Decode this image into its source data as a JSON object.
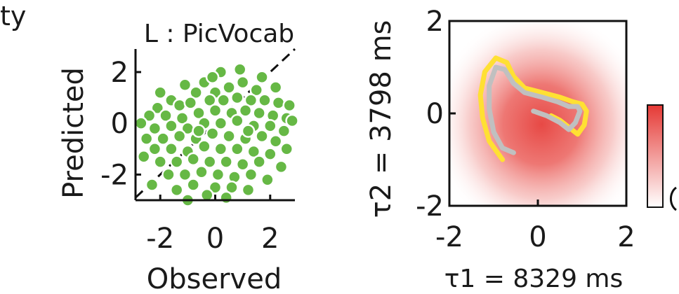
{
  "chart_data": [
    {
      "type": "scatter",
      "corner_text": "ty",
      "title": "L : PicVocab",
      "xlabel": "Observed",
      "ylabel": "Predicted",
      "xlim": [
        -2.9,
        2.9
      ],
      "ylim": [
        -3.0,
        2.9
      ],
      "xticks": [
        -2,
        0,
        2
      ],
      "yticks": [
        -2,
        0,
        2
      ],
      "tick_labels_x": [
        "-2",
        "0",
        "2"
      ],
      "tick_labels_y": [
        "-2",
        "0",
        "2"
      ],
      "marker_color": "#66b845",
      "marker_edge": "#ffffff",
      "reference_line": "identity (dashed)",
      "points": [
        [
          0.2,
          2.0
        ],
        [
          -0.4,
          1.6
        ],
        [
          0.5,
          1.4
        ],
        [
          -1.1,
          1.5
        ],
        [
          1.0,
          1.6
        ],
        [
          1.5,
          1.3
        ],
        [
          -0.7,
          1.2
        ],
        [
          0.0,
          1.2
        ],
        [
          -1.6,
          0.9
        ],
        [
          -2.1,
          0.6
        ],
        [
          -1.3,
          0.7
        ],
        [
          -0.9,
          0.8
        ],
        [
          -0.2,
          0.9
        ],
        [
          0.3,
          0.9
        ],
        [
          0.8,
          1.0
        ],
        [
          1.3,
          0.9
        ],
        [
          1.8,
          0.9
        ],
        [
          2.3,
          0.8
        ],
        [
          2.7,
          0.7
        ],
        [
          -2.4,
          0.3
        ],
        [
          -1.8,
          0.3
        ],
        [
          -1.2,
          0.2
        ],
        [
          -0.6,
          0.4
        ],
        [
          0.0,
          0.5
        ],
        [
          0.6,
          0.4
        ],
        [
          1.1,
          0.5
        ],
        [
          1.6,
          0.4
        ],
        [
          2.1,
          0.3
        ],
        [
          2.6,
          0.2
        ],
        [
          -2.2,
          -0.2
        ],
        [
          -1.6,
          -0.1
        ],
        [
          -1.0,
          -0.2
        ],
        [
          -0.4,
          0.0
        ],
        [
          0.2,
          0.0
        ],
        [
          0.8,
          0.1
        ],
        [
          1.4,
          -0.1
        ],
        [
          2.0,
          -0.1
        ],
        [
          2.5,
          -0.3
        ],
        [
          -2.5,
          -0.6
        ],
        [
          -1.9,
          -0.6
        ],
        [
          -1.3,
          -0.5
        ],
        [
          -0.7,
          -0.6
        ],
        [
          -0.1,
          -0.4
        ],
        [
          0.5,
          -0.5
        ],
        [
          1.1,
          -0.6
        ],
        [
          1.7,
          -0.5
        ],
        [
          2.2,
          -0.7
        ],
        [
          -2.2,
          -1.0
        ],
        [
          -1.6,
          -1.0
        ],
        [
          -1.0,
          -1.1
        ],
        [
          -0.4,
          -0.9
        ],
        [
          0.2,
          -1.0
        ],
        [
          0.8,
          -1.0
        ],
        [
          1.4,
          -1.1
        ],
        [
          2.0,
          -1.2
        ],
        [
          -2.0,
          -1.5
        ],
        [
          -1.4,
          -1.5
        ],
        [
          -0.8,
          -1.4
        ],
        [
          -0.2,
          -1.5
        ],
        [
          0.4,
          -1.5
        ],
        [
          1.0,
          -1.6
        ],
        [
          1.6,
          -1.5
        ],
        [
          2.4,
          -1.7
        ],
        [
          -1.7,
          -2.0
        ],
        [
          -1.1,
          -2.0
        ],
        [
          -0.5,
          -1.9
        ],
        [
          0.1,
          -2.0
        ],
        [
          0.7,
          -2.1
        ],
        [
          1.3,
          -2.0
        ],
        [
          -2.3,
          -2.4
        ],
        [
          -0.8,
          -2.4
        ],
        [
          0.0,
          -2.5
        ],
        [
          0.6,
          -2.5
        ],
        [
          1.2,
          -2.6
        ],
        [
          -1.4,
          -2.6
        ],
        [
          -0.3,
          -2.8
        ],
        [
          0.4,
          -2.9
        ],
        [
          -1.0,
          -3.0
        ],
        [
          1.9,
          -2.2
        ],
        [
          2.6,
          -1.0
        ],
        [
          -2.7,
          0.0
        ],
        [
          -2.0,
          1.2
        ],
        [
          1.7,
          1.8
        ],
        [
          0.9,
          2.1
        ],
        [
          -0.1,
          1.8
        ],
        [
          2.2,
          1.4
        ],
        [
          -2.6,
          -1.3
        ],
        [
          2.8,
          0.1
        ],
        [
          1.2,
          -0.3
        ],
        [
          -0.6,
          -0.3
        ]
      ]
    },
    {
      "type": "heatmap",
      "xlabel": "τ1 = 8329 ms",
      "ylabel": "τ2 = 3798 ms",
      "xlim": [
        -2,
        2
      ],
      "ylim": [
        -2,
        2
      ],
      "xticks": [
        -2,
        0,
        2
      ],
      "yticks": [
        -2,
        0,
        2
      ],
      "tick_labels_x": [
        "-2",
        "0",
        "2"
      ],
      "tick_labels_y": [
        "-2",
        "0",
        "2"
      ],
      "colormap": [
        "#ffffff",
        "#e53935"
      ],
      "trajectories": [
        {
          "color": "#ffe033",
          "points": [
            [
              -0.8,
              -1.0
            ],
            [
              -1.1,
              -0.6
            ],
            [
              -1.25,
              -0.1
            ],
            [
              -1.3,
              0.4
            ],
            [
              -1.2,
              0.9
            ],
            [
              -0.95,
              1.2
            ],
            [
              -0.7,
              1.1
            ],
            [
              -0.55,
              0.8
            ],
            [
              -0.3,
              0.55
            ],
            [
              0.1,
              0.45
            ],
            [
              0.5,
              0.35
            ],
            [
              0.8,
              0.25
            ],
            [
              1.0,
              0.2
            ],
            [
              1.1,
              0.05
            ],
            [
              1.05,
              -0.25
            ],
            [
              0.9,
              -0.45
            ],
            [
              0.7,
              -0.3
            ],
            [
              0.5,
              -0.15
            ],
            [
              0.3,
              -0.05
            ]
          ]
        },
        {
          "color": "#c0c0c0",
          "points": [
            [
              -0.55,
              -0.85
            ],
            [
              -0.8,
              -0.75
            ],
            [
              -1.0,
              -0.4
            ],
            [
              -1.1,
              0.1
            ],
            [
              -1.1,
              0.6
            ],
            [
              -0.95,
              1.0
            ],
            [
              -0.75,
              0.95
            ],
            [
              -0.55,
              0.65
            ],
            [
              -0.3,
              0.45
            ],
            [
              0.1,
              0.35
            ],
            [
              0.45,
              0.25
            ],
            [
              0.7,
              0.15
            ],
            [
              0.9,
              0.15
            ],
            [
              0.95,
              0.05
            ],
            [
              0.85,
              -0.2
            ],
            [
              0.7,
              -0.35
            ],
            [
              0.5,
              -0.2
            ],
            [
              0.2,
              -0.05
            ],
            [
              -0.1,
              0.05
            ]
          ]
        }
      ]
    }
  ]
}
